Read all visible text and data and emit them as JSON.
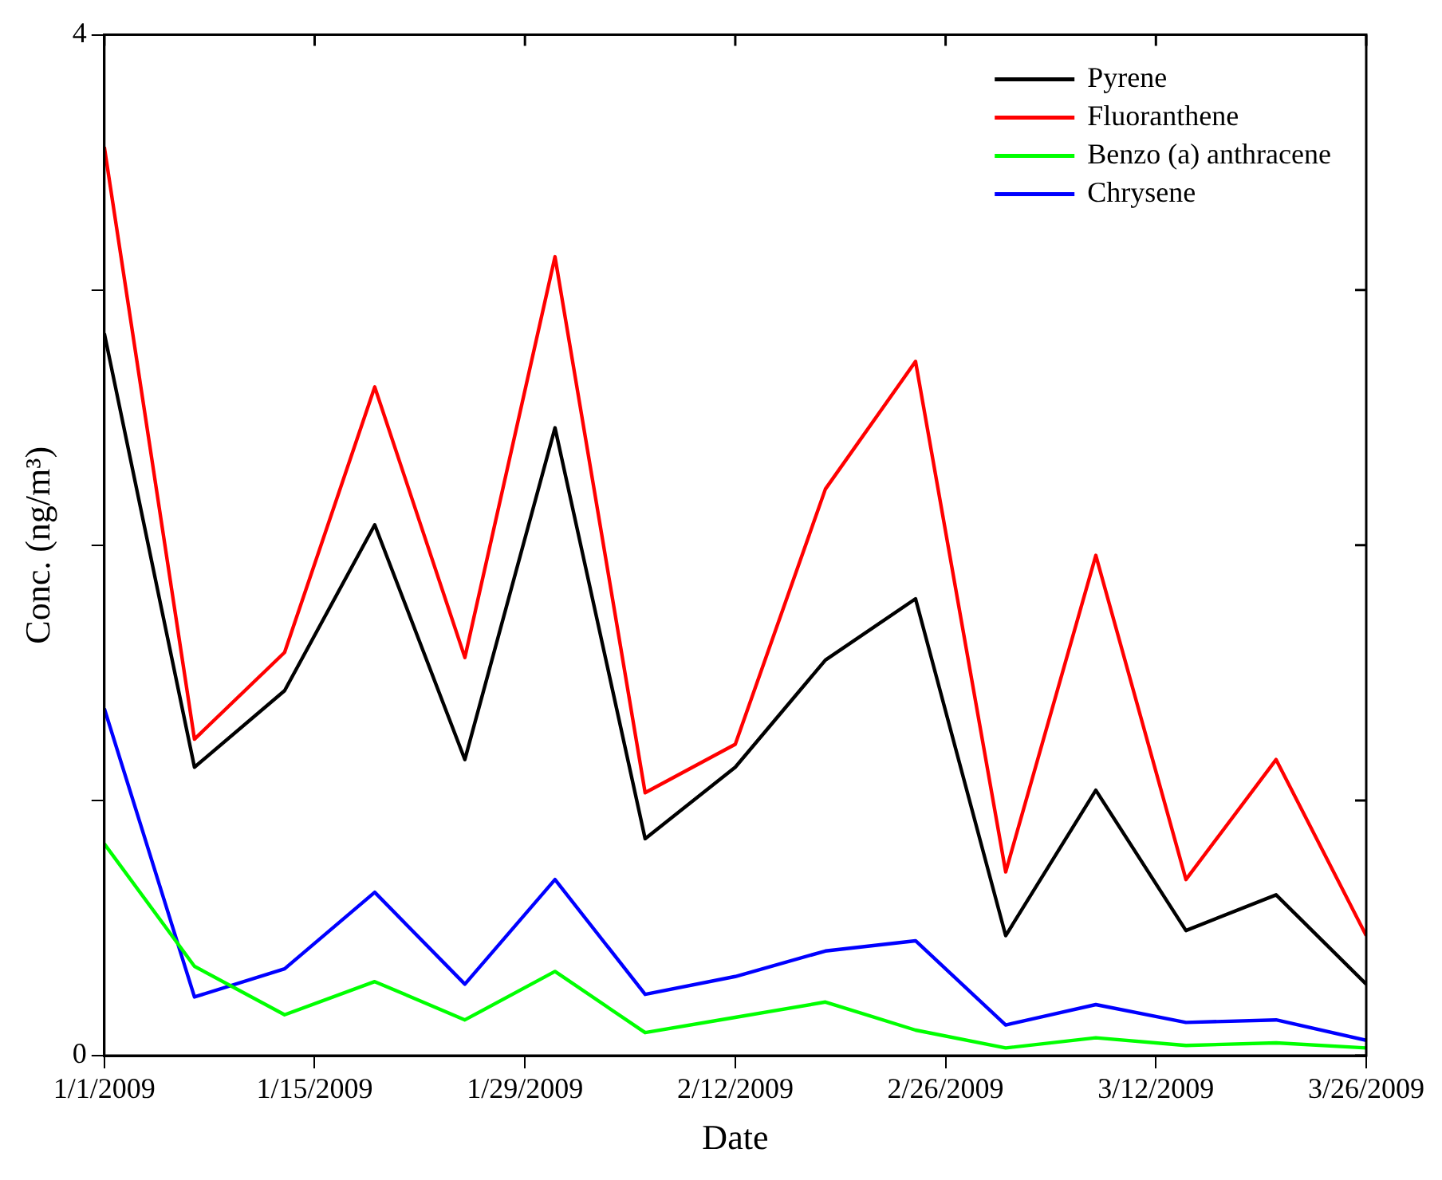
{
  "chart_data": {
    "type": "line",
    "xlabel": "Date",
    "ylabel": "Conc. (ng/m³)",
    "x": [
      "2009-01-01",
      "2009-01-07",
      "2009-01-13",
      "2009-01-19",
      "2009-01-25",
      "2009-01-31",
      "2009-02-06",
      "2009-02-12",
      "2009-02-18",
      "2009-02-24",
      "2009-03-02",
      "2009-03-08",
      "2009-03-14",
      "2009-03-20",
      "2009-03-26"
    ],
    "series": [
      {
        "name": "Pyrene",
        "color": "#000000",
        "values": [
          2.83,
          1.13,
          1.43,
          2.08,
          1.16,
          2.46,
          0.85,
          1.13,
          1.55,
          1.79,
          0.47,
          1.04,
          0.49,
          0.63,
          0.28
        ]
      },
      {
        "name": "Fluoranthene",
        "color": "#ff0000",
        "values": [
          3.56,
          1.24,
          1.58,
          2.62,
          1.56,
          3.13,
          1.03,
          1.22,
          2.22,
          2.72,
          0.72,
          1.96,
          0.69,
          1.16,
          0.47
        ]
      },
      {
        "name": "Benzo (a) anthracene",
        "color": "#00ff00",
        "values": [
          0.83,
          0.35,
          0.16,
          0.29,
          0.14,
          0.33,
          0.09,
          0.15,
          0.21,
          0.1,
          0.03,
          0.07,
          0.04,
          0.05,
          0.03
        ]
      },
      {
        "name": "Chrysene",
        "color": "#0000ff",
        "values": [
          1.36,
          0.23,
          0.34,
          0.64,
          0.28,
          0.69,
          0.24,
          0.31,
          0.41,
          0.45,
          0.12,
          0.2,
          0.13,
          0.14,
          0.06
        ]
      }
    ],
    "xlim": [
      "2009-01-01",
      "2009-03-26"
    ],
    "xticks": [
      {
        "value": "2009-01-01",
        "label": "1/1/2009"
      },
      {
        "value": "2009-01-15",
        "label": "1/15/2009"
      },
      {
        "value": "2009-01-29",
        "label": "1/29/2009"
      },
      {
        "value": "2009-02-12",
        "label": "2/12/2009"
      },
      {
        "value": "2009-02-26",
        "label": "2/26/2009"
      },
      {
        "value": "2009-03-12",
        "label": "3/12/2009"
      },
      {
        "value": "2009-03-26",
        "label": "3/26/2009"
      }
    ],
    "ylim": [
      0,
      4
    ],
    "yticks": [
      0,
      {
        "value": 1,
        "label": null
      },
      {
        "value": 2,
        "label": null
      },
      {
        "value": 3,
        "label": null
      },
      4
    ],
    "grid": false,
    "legend": "top right",
    "marker": "none",
    "line_style": "solid"
  }
}
